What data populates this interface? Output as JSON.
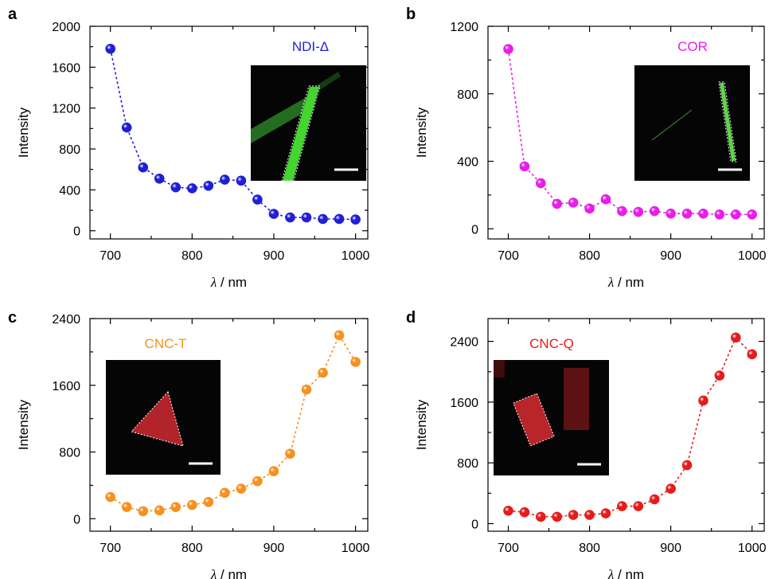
{
  "chart_data": [
    {
      "panel": "a",
      "type": "line",
      "annotation": "NDI-Δ",
      "color": "#1f1fd6",
      "xlabel_var": "λ",
      "xlabel_unit": " / nm",
      "ylabel": "Intensity",
      "xlim": [
        675,
        1015
      ],
      "ylim": [
        -80,
        2000
      ],
      "xticks": [
        700,
        800,
        900,
        1000
      ],
      "yticks": [
        0,
        400,
        800,
        1200,
        1600,
        2000
      ],
      "x": [
        700,
        720,
        740,
        760,
        780,
        800,
        820,
        840,
        860,
        880,
        900,
        920,
        940,
        960,
        980,
        1000
      ],
      "y": [
        1780,
        1010,
        620,
        510,
        425,
        415,
        440,
        500,
        490,
        305,
        165,
        130,
        130,
        115,
        115,
        110
      ],
      "inset": "green-rod"
    },
    {
      "panel": "b",
      "type": "line",
      "annotation": "COR",
      "color": "#e81ee8",
      "xlabel_var": "λ",
      "xlabel_unit": " / nm",
      "ylabel": "Intensity",
      "xlim": [
        675,
        1015
      ],
      "ylim": [
        -60,
        1200
      ],
      "xticks": [
        700,
        800,
        900,
        1000
      ],
      "yticks": [
        0,
        400,
        800,
        1200
      ],
      "x": [
        700,
        720,
        740,
        760,
        780,
        800,
        820,
        840,
        860,
        880,
        900,
        920,
        940,
        960,
        980,
        1000
      ],
      "y": [
        1065,
        370,
        270,
        148,
        155,
        120,
        175,
        105,
        100,
        105,
        90,
        90,
        90,
        85,
        85,
        85
      ],
      "inset": "thin-green-rod"
    },
    {
      "panel": "c",
      "type": "line",
      "annotation": "CNC-T",
      "color": "#f7901e",
      "xlabel_var": "λ",
      "xlabel_unit": " / nm",
      "ylabel": "Intensity",
      "xlim": [
        675,
        1015
      ],
      "ylim": [
        -150,
        2400
      ],
      "xticks": [
        700,
        800,
        900,
        1000
      ],
      "yticks": [
        0,
        800,
        1600,
        2400
      ],
      "x": [
        700,
        720,
        740,
        760,
        780,
        800,
        820,
        840,
        860,
        880,
        900,
        920,
        940,
        960,
        980,
        1000
      ],
      "y": [
        260,
        140,
        90,
        100,
        140,
        165,
        200,
        310,
        360,
        450,
        570,
        780,
        1550,
        1750,
        2200,
        1880
      ],
      "inset": "red-triangle"
    },
    {
      "panel": "d",
      "type": "line",
      "annotation": "CNC-Q",
      "color": "#e51c1c",
      "xlabel_var": "λ",
      "xlabel_unit": " / nm",
      "ylabel": "Intensity",
      "xlim": [
        675,
        1015
      ],
      "ylim": [
        -100,
        2700
      ],
      "xticks": [
        700,
        800,
        900,
        1000
      ],
      "yticks": [
        0,
        800,
        1600,
        2400
      ],
      "x": [
        700,
        720,
        740,
        760,
        780,
        800,
        820,
        840,
        860,
        880,
        900,
        920,
        940,
        960,
        980,
        1000
      ],
      "y": [
        170,
        150,
        90,
        90,
        115,
        115,
        135,
        230,
        230,
        320,
        460,
        770,
        1620,
        1950,
        2450,
        2230
      ],
      "inset": "red-rectangle"
    }
  ]
}
